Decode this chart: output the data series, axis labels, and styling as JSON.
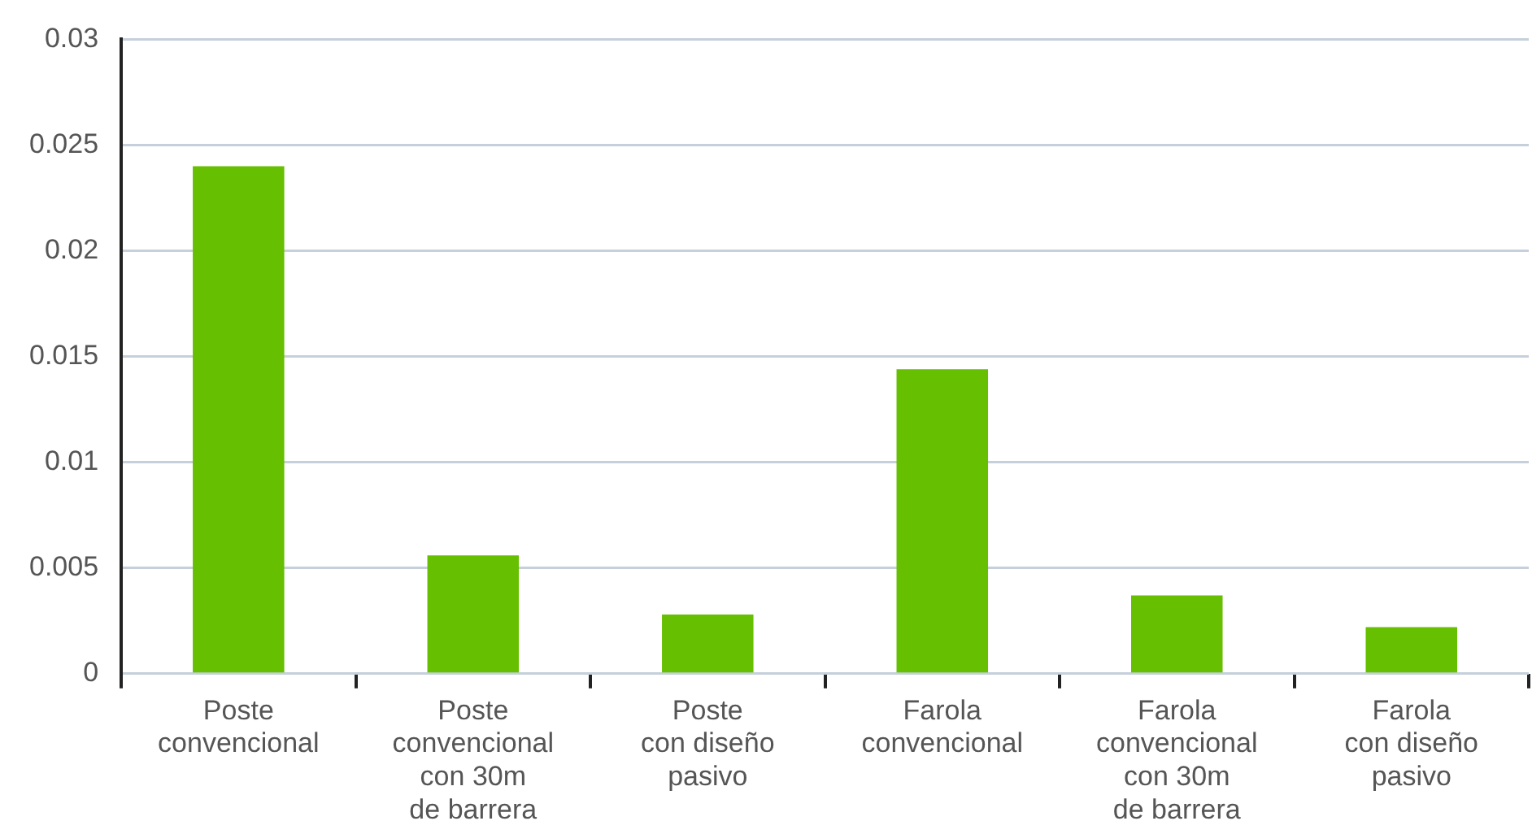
{
  "chart_data": {
    "type": "bar",
    "categories": [
      "Poste\nconvencional",
      "Poste\nconvencional\ncon 30m\nde barrera",
      "Poste\ncon diseño\npasivo",
      "Farola\nconvencional",
      "Farola\nconvencional\ncon 30m\nde barrera",
      "Farola\ncon diseño\npasivo"
    ],
    "values": [
      0.024,
      0.0056,
      0.0028,
      0.0144,
      0.0037,
      0.0022
    ],
    "color": "#66bf00",
    "ylim": [
      0,
      0.03
    ],
    "yticks": [
      0,
      0.005,
      0.01,
      0.015,
      0.02,
      0.025,
      0.03
    ],
    "grid": "y",
    "legend": false
  }
}
